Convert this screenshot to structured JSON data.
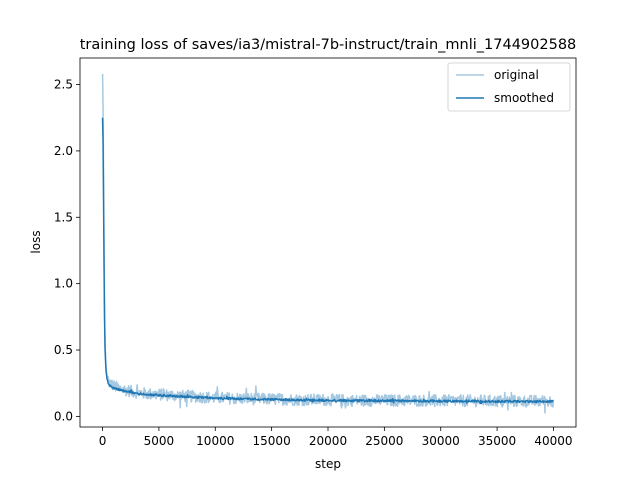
{
  "chart_data": {
    "type": "line",
    "title": "training loss of saves/ia3/mistral-7b-instruct/train_mnli_1744902588",
    "xlabel": "step",
    "ylabel": "loss",
    "xlim": [
      -2000,
      42000
    ],
    "ylim": [
      -0.08,
      2.7
    ],
    "xticks": [
      0,
      5000,
      10000,
      15000,
      20000,
      25000,
      30000,
      35000,
      40000
    ],
    "yticks": [
      0.0,
      0.5,
      1.0,
      1.5,
      2.0,
      2.5
    ],
    "xtick_labels": [
      "0",
      "5000",
      "10000",
      "15000",
      "20000",
      "25000",
      "30000",
      "35000",
      "40000"
    ],
    "ytick_labels": [
      "0.0",
      "0.5",
      "1.0",
      "1.5",
      "2.0",
      "2.5"
    ],
    "grid": false,
    "legend_position": "top-right",
    "series": [
      {
        "name": "original",
        "color": "#a6c8e0",
        "x": [
          0,
          50,
          100,
          150,
          200,
          300,
          400,
          500,
          600,
          800,
          1000,
          1500,
          2000,
          3000,
          4000,
          5000,
          6000,
          8000,
          10000,
          12000,
          15000,
          18000,
          20000,
          22000,
          25000,
          28000,
          30000,
          32000,
          35000,
          38000,
          40000
        ],
        "values": [
          2.58,
          2.3,
          1.7,
          1.05,
          0.6,
          0.38,
          0.3,
          0.27,
          0.25,
          0.24,
          0.23,
          0.21,
          0.2,
          0.18,
          0.17,
          0.165,
          0.16,
          0.15,
          0.14,
          0.135,
          0.13,
          0.125,
          0.125,
          0.12,
          0.12,
          0.12,
          0.118,
          0.118,
          0.115,
          0.115,
          0.115
        ],
        "noise_amplitude": 0.045
      },
      {
        "name": "smoothed",
        "color": "#1f77b4",
        "x": [
          0,
          50,
          100,
          150,
          200,
          300,
          400,
          500,
          600,
          800,
          1000,
          1500,
          2000,
          3000,
          4000,
          5000,
          6000,
          8000,
          10000,
          12000,
          15000,
          18000,
          20000,
          22000,
          25000,
          28000,
          30000,
          32000,
          35000,
          38000,
          40000
        ],
        "values": [
          2.25,
          2.05,
          1.5,
          0.95,
          0.55,
          0.35,
          0.28,
          0.25,
          0.235,
          0.225,
          0.215,
          0.2,
          0.19,
          0.175,
          0.165,
          0.16,
          0.155,
          0.145,
          0.137,
          0.132,
          0.127,
          0.122,
          0.122,
          0.118,
          0.118,
          0.117,
          0.115,
          0.115,
          0.113,
          0.113,
          0.113
        ],
        "noise_amplitude": 0.008
      }
    ]
  }
}
